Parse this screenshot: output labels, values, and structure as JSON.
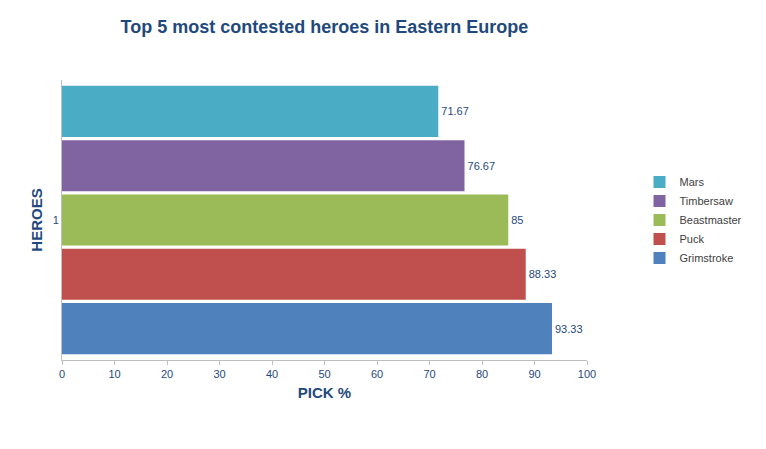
{
  "chart_data": {
    "type": "bar",
    "title": "Top 5 most contested heroes in Eastern Europe",
    "x_label": "PICK %",
    "y_label": "HEROES",
    "orientation": "horizontal",
    "categories": [
      "1"
    ],
    "series": [
      {
        "name": "Grimstroke",
        "color": "#4f81bd",
        "values": [
          93.33
        ]
      },
      {
        "name": "Puck",
        "color": "#c0504d",
        "values": [
          88.33
        ]
      },
      {
        "name": "Beastmaster",
        "color": "#9bbb59",
        "values": [
          85
        ]
      },
      {
        "name": "Timbersaw",
        "color": "#8064a2",
        "values": [
          76.67
        ]
      },
      {
        "name": "Mars",
        "color": "#4bacc6",
        "values": [
          71.67
        ]
      }
    ],
    "xlim": [
      0,
      100
    ],
    "xticks": [
      0,
      10,
      20,
      30,
      40,
      50,
      60,
      70,
      80,
      90,
      100
    ],
    "grid": false,
    "legend": "right",
    "data_labels": true
  }
}
